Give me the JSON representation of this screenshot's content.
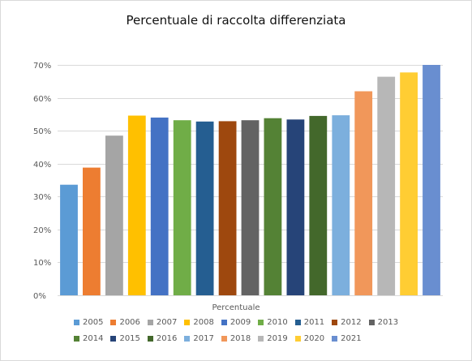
{
  "chart_data": {
    "type": "bar",
    "title": "Percentuale di raccolta differenziata",
    "xlabel": "Percentuale",
    "ylabel": "",
    "ylim": [
      0,
      70
    ],
    "y_ticks": [
      "0%",
      "10%",
      "20%",
      "30%",
      "40%",
      "50%",
      "60%",
      "70%"
    ],
    "grid": true,
    "legend_position": "bottom",
    "series": [
      {
        "name": "2005",
        "value": 33.6,
        "color": "#5b9bd5"
      },
      {
        "name": "2006",
        "value": 38.8,
        "color": "#ed7d31"
      },
      {
        "name": "2007",
        "value": 48.5,
        "color": "#a5a5a5"
      },
      {
        "name": "2008",
        "value": 54.6,
        "color": "#ffc000"
      },
      {
        "name": "2009",
        "value": 54.0,
        "color": "#4472c4"
      },
      {
        "name": "2010",
        "value": 53.2,
        "color": "#70ad47"
      },
      {
        "name": "2011",
        "value": 52.8,
        "color": "#255e91"
      },
      {
        "name": "2012",
        "value": 52.9,
        "color": "#9e480e"
      },
      {
        "name": "2013",
        "value": 53.2,
        "color": "#636363"
      },
      {
        "name": "2014",
        "value": 53.8,
        "color": "#548235"
      },
      {
        "name": "2015",
        "value": 53.4,
        "color": "#264478"
      },
      {
        "name": "2016",
        "value": 54.5,
        "color": "#43682b"
      },
      {
        "name": "2017",
        "value": 54.7,
        "color": "#7cafdd"
      },
      {
        "name": "2018",
        "value": 62.0,
        "color": "#f1975a"
      },
      {
        "name": "2019",
        "value": 66.4,
        "color": "#b7b7b7"
      },
      {
        "name": "2020",
        "value": 67.7,
        "color": "#ffcd33"
      },
      {
        "name": "2021",
        "value": 70.0,
        "color": "#698ed0"
      }
    ]
  }
}
